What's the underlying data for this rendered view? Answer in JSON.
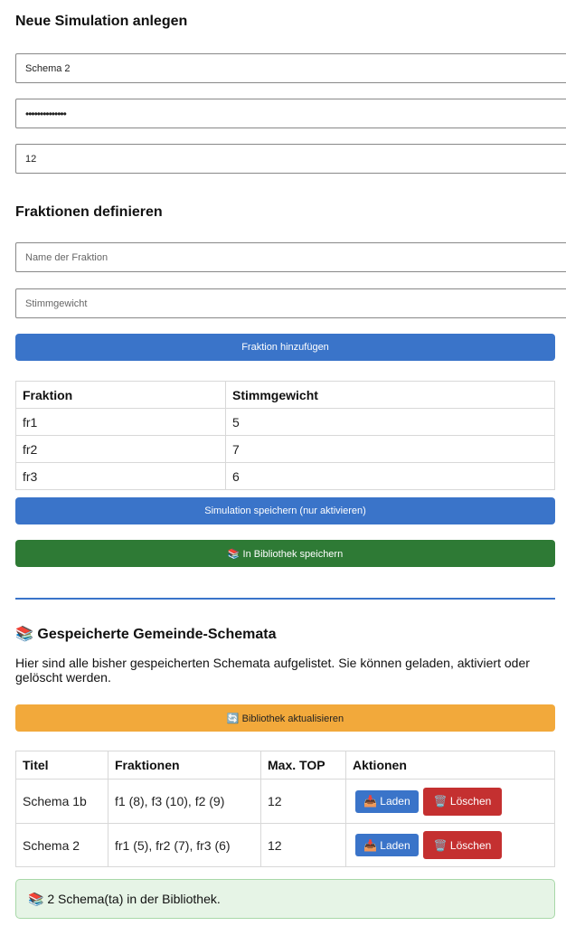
{
  "form": {
    "title": "Neue Simulation anlegen",
    "name_value": "Schema 2",
    "password_value": "••••••••••••••",
    "max_top_value": "12"
  },
  "fractions": {
    "title": "Fraktionen definieren",
    "name_placeholder": "Name der Fraktion",
    "weight_placeholder": "Stimmgewicht",
    "add_label": "Fraktion hinzufügen",
    "headers": [
      "Fraktion",
      "Stimmgewicht"
    ],
    "rows": [
      [
        "fr1",
        "5"
      ],
      [
        "fr2",
        "7"
      ],
      [
        "fr3",
        "6"
      ]
    ]
  },
  "actions": {
    "save_label": "Simulation speichern (nur aktivieren)",
    "library_save_label": "📚 In Bibliothek speichern"
  },
  "colors": {
    "primary": "#3a74c9",
    "success": "#2e7a35",
    "warning": "#f2a93b",
    "danger": "#c43030",
    "divider": "#3a74c9"
  },
  "library": {
    "title": "📚 Gespeicherte Gemeinde-Schemata",
    "description": "Hier sind alle bisher gespeicherten Schemata aufgelistet. Sie können geladen, aktiviert oder gelöscht werden.",
    "refresh_label": "🔄 Bibliothek aktualisieren",
    "headers": [
      "Titel",
      "Fraktionen",
      "Max. TOP",
      "Aktionen"
    ],
    "rows": [
      {
        "title": "Schema 1b",
        "fractions": "f1 (8), f3 (10), f2 (9)",
        "max_top": "12",
        "load": "📥 Laden",
        "delete": "🗑️ Löschen"
      },
      {
        "title": "Schema 2",
        "fractions": "fr1 (5), fr2 (7), fr3 (6)",
        "max_top": "12",
        "load": "📥 Laden",
        "delete": "🗑️ Löschen"
      }
    ],
    "status": "📚 2 Schema(ta) in der Bibliothek."
  }
}
